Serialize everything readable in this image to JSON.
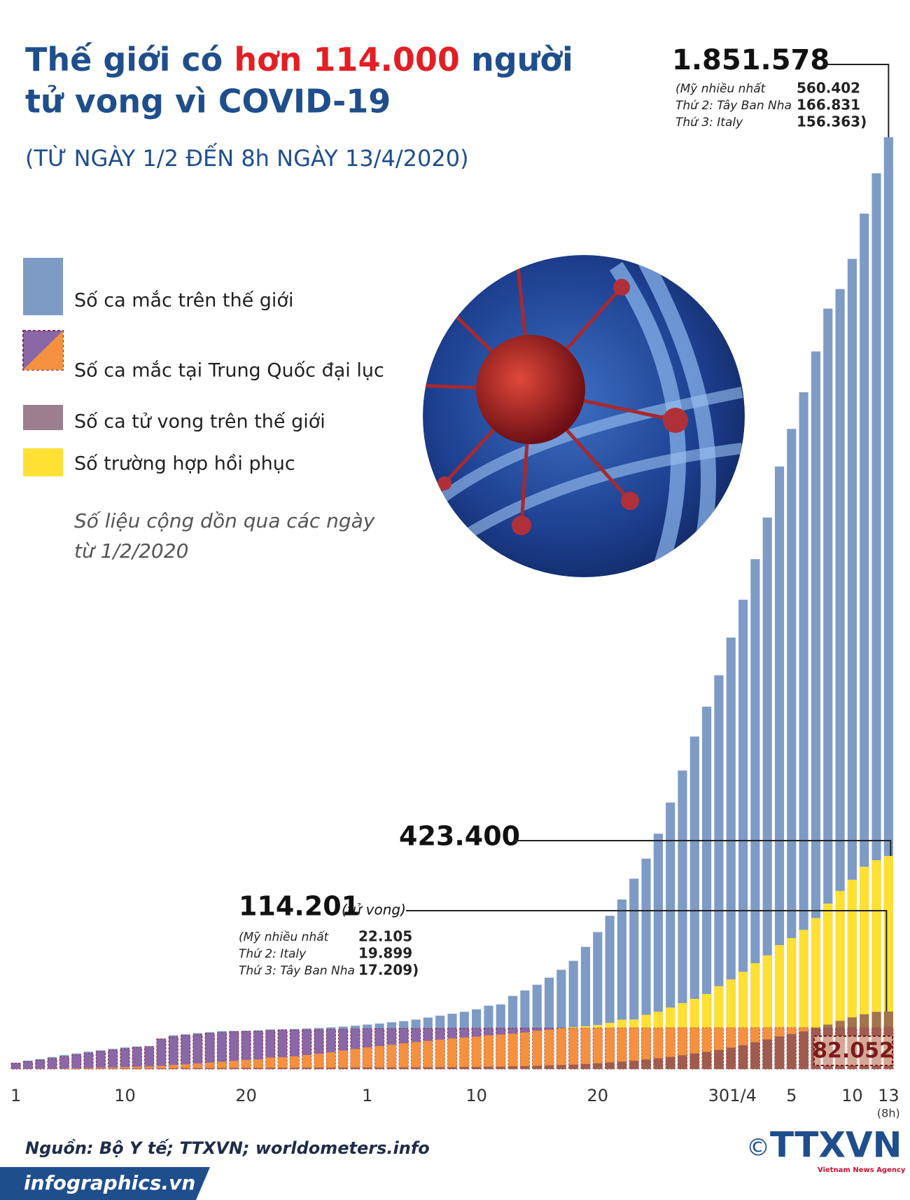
{
  "page": {
    "title_pre": "Thế giới có",
    "title_highlight": "hơn 114.000",
    "title_post": "người",
    "title_line2": "tử vong vì COVID-19",
    "subtitle": "(TỪ NGÀY 1/2 ĐẾN 8h NGÀY 13/4/2020)",
    "note_line1": "Số liệu cộng dồn qua các ngày",
    "note_line2": "từ 1/2/2020",
    "source": "Nguồn: Bộ Y tế; TTXVN; worldometers.info",
    "footer": "infographics.vn",
    "logo": "TTXVN",
    "logo_sub": "Vietnam News Agency",
    "copyright": "©"
  },
  "chart_data": {
    "type": "bar",
    "last_note": "(8h)",
    "categories": [
      "1",
      null,
      null,
      null,
      null,
      null,
      null,
      null,
      null,
      "10",
      null,
      null,
      null,
      null,
      null,
      null,
      null,
      null,
      null,
      "20",
      null,
      null,
      null,
      null,
      null,
      null,
      null,
      null,
      null,
      "1",
      null,
      null,
      null,
      null,
      null,
      null,
      null,
      null,
      "10",
      null,
      null,
      null,
      null,
      null,
      null,
      null,
      null,
      null,
      "20",
      null,
      null,
      null,
      null,
      null,
      null,
      null,
      null,
      null,
      "30",
      null,
      "1/4",
      null,
      null,
      null,
      "5",
      null,
      null,
      null,
      null,
      "10",
      null,
      null,
      "13"
    ],
    "series": [
      {
        "name": "Số ca mắc trên thế giới",
        "color": "#7e9bc6",
        "values": [
          12038,
          16787,
          19881,
          23892,
          27636,
          30818,
          34392,
          37121,
          40151,
          42763,
          44803,
          45222,
          60370,
          66887,
          69032,
          71226,
          73260,
          75138,
          75641,
          76199,
          76843,
          78599,
          78985,
          79570,
          80415,
          81397,
          82756,
          84124,
          86013,
          88371,
          90309,
          92844,
          95124,
          98192,
          102242,
          106103,
          109821,
          113590,
          118620,
          125865,
          128343,
          145193,
          156097,
          167449,
          181546,
          197168,
          214915,
          242713,
          272167,
          304528,
          336953,
          378235,
          418045,
          467653,
          529591,
          593291,
          660706,
          720117,
          782365,
          857487,
          932605,
          1013157,
          1095917,
          1197405,
          1272115,
          1345048,
          1426096,
          1511104,
          1550000,
          1610000,
          1700000,
          1780000,
          1851578
        ]
      },
      {
        "name": "Số ca mắc tại Trung Quốc đại lục",
        "color": "#8a67a6",
        "overlap_color": "#f5913e",
        "values": [
          11791,
          14380,
          17205,
          20438,
          24324,
          28018,
          31161,
          34546,
          37198,
          40171,
          42638,
          44653,
          59804,
          63851,
          66492,
          68500,
          70548,
          72436,
          74185,
          74576,
          75077,
          76392,
          77042,
          77262,
          77779,
          78190,
          78630,
          78959,
          79389,
          79968,
          80174,
          80303,
          80424,
          80581,
          80734,
          80815,
          80868,
          80905,
          80932,
          80969,
          81003,
          81021,
          81048,
          81077,
          81116,
          81151,
          81235,
          81300,
          81416,
          81498,
          81560,
          81600,
          81640,
          81680,
          81720,
          81760,
          81800,
          81830,
          81850,
          81860,
          81870,
          81885,
          81900,
          81915,
          81930,
          81945,
          81960,
          81975,
          81990,
          82005,
          82020,
          82035,
          82052
        ]
      },
      {
        "name": "Số ca tử vong trên thế giới",
        "color": "#7a4656",
        "values": [
          259,
          362,
          426,
          492,
          564,
          634,
          719,
          806,
          906,
          1013,
          1113,
          1118,
          1371,
          1523,
          1666,
          1770,
          1868,
          2007,
          2122,
          2247,
          2251,
          2458,
          2469,
          2629,
          2708,
          2770,
          2814,
          2872,
          2941,
          2996,
          3085,
          3160,
          3254,
          3348,
          3460,
          3558,
          3802,
          3988,
          4262,
          4615,
          4720,
          5404,
          5819,
          6440,
          7126,
          7905,
          8733,
          9867,
          11299,
          13012,
          14647,
          16505,
          18905,
          21293,
          24082,
          27367,
          30873,
          34018,
          37820,
          42334,
          47242,
          53190,
          58900,
          64729,
          69456,
          74654,
          81880,
          88338,
          95693,
          102657,
          108800,
          113500,
          114201
        ]
      },
      {
        "name": "Số trường hợp hồi phục",
        "color": "#ffe033",
        "values": [
          275,
          463,
          626,
          852,
          1126,
          1488,
          2012,
          2620,
          3244,
          3946,
          4683,
          5150,
          6295,
          8058,
          9395,
          10865,
          12583,
          14352,
          16121,
          18177,
          18890,
          22886,
          23394,
          25227,
          27905,
          30384,
          33277,
          36711,
          39782,
          42716,
          45602,
          48228,
          51170,
          53796,
          55865,
          58358,
          60694,
          62494,
          64404,
          67003,
          68324,
          70251,
          72624,
          76034,
          78088,
          80840,
          83312,
          84975,
          87420,
          91692,
          97899,
          98351,
          107705,
          113770,
          122150,
          130915,
          139415,
          149082,
          164566,
          178034,
          193177,
          210263,
          225796,
          246152,
          260012,
          276515,
          300054,
          328661,
          353975,
          376096,
          402000,
          415000,
          423400
        ]
      }
    ],
    "annotations": [
      {
        "text": "1.851.578",
        "value": 1851578,
        "details": [
          [
            "(Mỹ nhiều nhất",
            "560.402"
          ],
          [
            "Thứ 2: Tây Ban Nha",
            "166.831"
          ],
          [
            "Thứ 3: Italy",
            "156.363)"
          ]
        ]
      },
      {
        "text": "423.400",
        "value": 423400
      },
      {
        "text": "114.201",
        "value": 114201,
        "suffix": "(tử vong)",
        "details": [
          [
            "(Mỹ nhiều nhất",
            "22.105"
          ],
          [
            "Thứ 2:  Italy",
            "19.899"
          ],
          [
            "Thứ 3: Tây Ban Nha",
            "17.209)"
          ]
        ]
      },
      {
        "text": "82.052",
        "value": 82052
      }
    ]
  }
}
